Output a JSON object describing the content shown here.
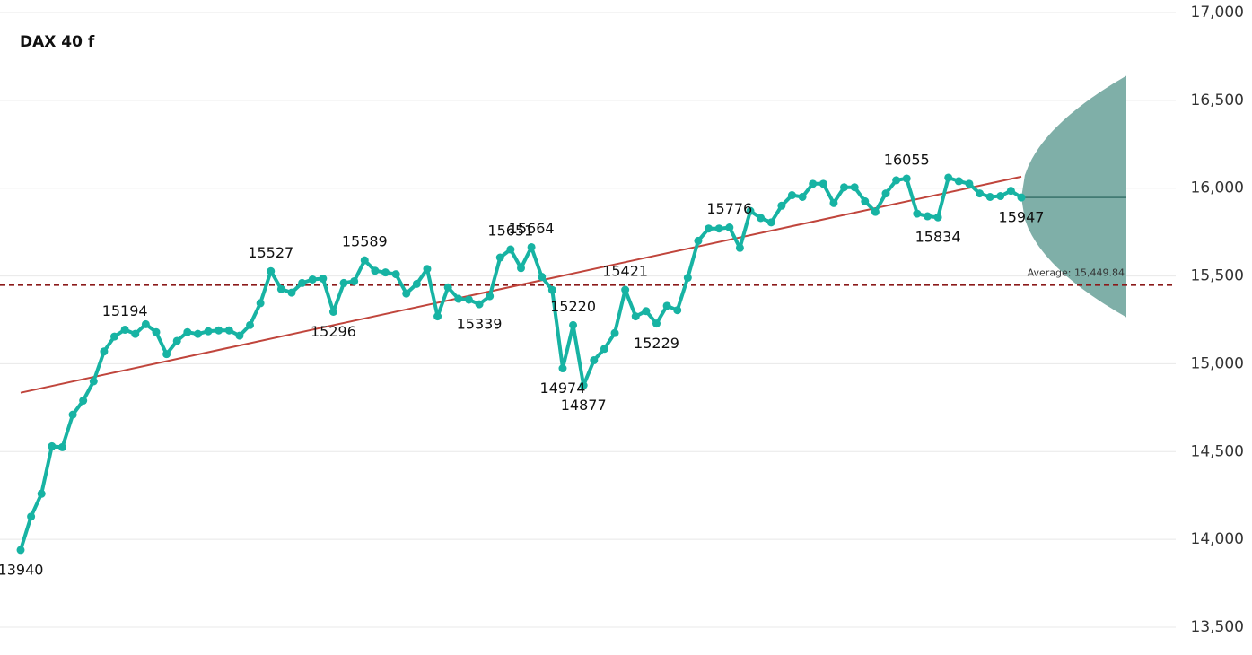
{
  "chart_data": {
    "type": "line",
    "title": "DAX 40 f",
    "values": [
      13940,
      14130,
      14260,
      14530,
      14525,
      14710,
      14790,
      14900,
      15070,
      15155,
      15194,
      15170,
      15225,
      15180,
      15055,
      15130,
      15180,
      15170,
      15185,
      15190,
      15190,
      15160,
      15220,
      15345,
      15527,
      15425,
      15405,
      15460,
      15480,
      15485,
      15296,
      15460,
      15470,
      15589,
      15530,
      15520,
      15510,
      15400,
      15455,
      15540,
      15270,
      15435,
      15370,
      15365,
      15339,
      15385,
      15605,
      15651,
      15545,
      15664,
      15495,
      15420,
      14974,
      15220,
      14877,
      15020,
      15085,
      15175,
      15421,
      15270,
      15300,
      15229,
      15330,
      15305,
      15490,
      15700,
      15770,
      15770,
      15776,
      15660,
      15870,
      15830,
      15805,
      15900,
      15960,
      15950,
      16025,
      16025,
      15915,
      16005,
      16005,
      15925,
      15865,
      15970,
      16045,
      16055,
      15855,
      15840,
      15834,
      16060,
      16040,
      16025,
      15970,
      15950,
      15955,
      15985,
      15947
    ],
    "value_labels": [
      "13940",
      null,
      null,
      null,
      null,
      null,
      null,
      null,
      null,
      null,
      "15194",
      null,
      null,
      null,
      null,
      null,
      null,
      null,
      null,
      null,
      null,
      null,
      null,
      null,
      "15527",
      null,
      null,
      null,
      null,
      null,
      "15296",
      null,
      null,
      "15589",
      null,
      null,
      null,
      null,
      null,
      null,
      null,
      null,
      null,
      null,
      "15339",
      null,
      null,
      "15651",
      null,
      "15664",
      null,
      null,
      "14974",
      "15220",
      "14877",
      null,
      null,
      null,
      "15421",
      null,
      null,
      "15229",
      null,
      null,
      null,
      null,
      null,
      null,
      "15776",
      null,
      null,
      null,
      null,
      null,
      null,
      null,
      null,
      null,
      null,
      null,
      null,
      null,
      null,
      null,
      null,
      "16055",
      null,
      null,
      "15834",
      null,
      null,
      null,
      null,
      null,
      null,
      null,
      "15947"
    ],
    "color": "#17b3a3",
    "trend_color": "#c0453c",
    "average": {
      "value": 15449.84,
      "label": "Average: 15,449.84",
      "color": "#8b1a1a"
    },
    "forecast": {
      "upper": 16640,
      "lower": 15265,
      "value": 15947,
      "color": "#7fafa8"
    },
    "ylim": [
      13500,
      17000
    ],
    "yticks": [
      {
        "value": 13500,
        "label": "13,500"
      },
      {
        "value": 14000,
        "label": "14,000"
      },
      {
        "value": 14500,
        "label": "14,500"
      },
      {
        "value": 15000,
        "label": "15,000"
      },
      {
        "value": 15500,
        "label": "15,500"
      },
      {
        "value": 16000,
        "label": "16,000"
      },
      {
        "value": 16500,
        "label": "16,500"
      },
      {
        "value": 17000,
        "label": "17,000"
      }
    ],
    "grid": true
  }
}
